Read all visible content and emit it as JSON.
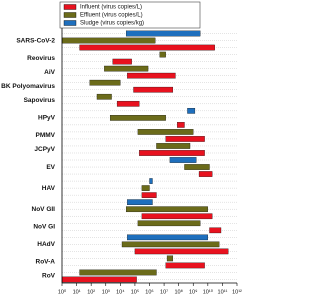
{
  "chart_data": {
    "type": "range-bar",
    "log_x": true,
    "categories": [
      "SARS-CoV-2",
      "Reovirus",
      "AiV",
      "BK Polyomavirus",
      "Sapovirus",
      "HPyV",
      "PMMV",
      "JCPyV",
      "EV",
      "HAV",
      "NoV GII",
      "NoV GI",
      "HAdV",
      "RoV-A",
      "RoV"
    ],
    "series": [
      {
        "name": "Influent (virus copies/L)",
        "color": "#e8121f",
        "values": [
          [
            16,
            30000000000.0
          ],
          [
            3000.0,
            60000.0
          ],
          [
            30000.0,
            60000000.0
          ],
          [
            80000.0,
            40000000.0
          ],
          [
            6000.0,
            200000.0
          ],
          [
            80000000.0,
            250000000.0
          ],
          [
            13000000.0,
            6000000000.0
          ],
          [
            200000.0,
            6000000000.0
          ],
          [
            2500000000.0,
            20000000000.0
          ],
          [
            300000.0,
            3000000.0
          ],
          [
            300000.0,
            20000000000.0
          ],
          [
            13000000000.0,
            80000000000.0
          ],
          [
            100000.0,
            250000000000.0
          ],
          [
            13000000.0,
            6000000000.0
          ],
          [
            1,
            130000.0
          ]
        ]
      },
      {
        "name": "Effluent (virus copies/L)",
        "color": "#6b6b1a",
        "values": [
          [
            1,
            2500000.0
          ],
          [
            5000000.0,
            13000000.0
          ],
          [
            800.0,
            800000.0
          ],
          [
            80,
            10000.0
          ],
          [
            250,
            2500.0
          ],
          [
            2000.0,
            13000000.0
          ],
          [
            160000.0,
            1000000000.0
          ],
          [
            3000000.0,
            600000000.0
          ],
          [
            250000000.0,
            13000000000.0
          ],
          [
            300000.0,
            1000000.0
          ],
          [
            25000.0,
            10000000000.0
          ],
          [
            160000.0,
            3000000000.0
          ],
          [
            13000.0,
            60000000000.0
          ],
          [
            16000000.0,
            40000000.0
          ],
          [
            16,
            3000000.0
          ]
        ]
      },
      {
        "name": "Sludge (virus copies/kg)",
        "color": "#1e6fbd",
        "values": [
          [
            25000.0,
            3000000000.0
          ],
          null,
          null,
          null,
          null,
          [
            400000000.0,
            1300000000.0
          ],
          null,
          null,
          [
            25000000.0,
            1600000000.0
          ],
          [
            1000000.0,
            1600000.0
          ],
          [
            30000.0,
            1600000.0
          ],
          null,
          [
            30000.0,
            10000000000.0
          ],
          null,
          null
        ]
      }
    ],
    "xlim": [
      1,
      1000000000000.0
    ],
    "xticks": [
      {
        "value": 1,
        "label": "10⁰"
      },
      {
        "value": 10,
        "label": "10¹"
      },
      {
        "value": 100,
        "label": "10²"
      },
      {
        "value": 1000,
        "label": "10³"
      },
      {
        "value": 10000.0,
        "label": "10⁴"
      },
      {
        "value": 100000.0,
        "label": "10⁵"
      },
      {
        "value": 1000000.0,
        "label": "10⁶"
      },
      {
        "value": 10000000.0,
        "label": "10⁷"
      },
      {
        "value": 100000000.0,
        "label": "10⁸"
      },
      {
        "value": 1000000000.0,
        "label": "10⁹"
      },
      {
        "value": 10000000000.0,
        "label": "10¹⁰"
      },
      {
        "value": 100000000000.0,
        "label": "10¹¹"
      },
      {
        "value": 1000000000000.0,
        "label": "10¹²"
      }
    ],
    "grid": true,
    "legend": "top"
  }
}
